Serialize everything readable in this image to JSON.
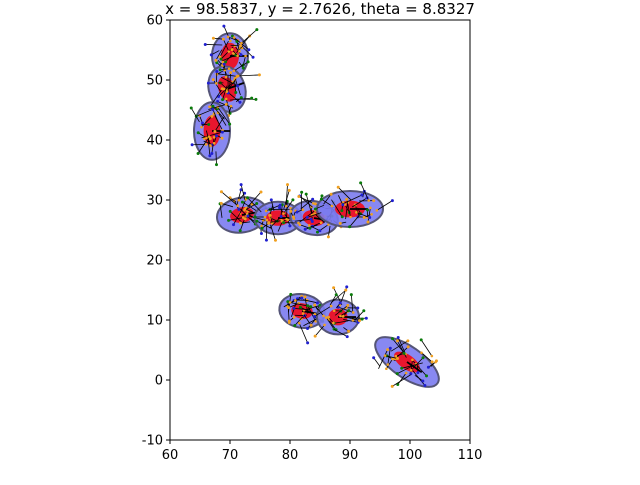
{
  "chart_data": {
    "type": "scatter",
    "title": "x = 98.5837, y = 2.7626, theta = 8.8327",
    "xlabel": "",
    "ylabel": "",
    "xlim": [
      60,
      110
    ],
    "ylim": [
      -10,
      60
    ],
    "xticks": [
      60,
      70,
      80,
      90,
      100,
      110
    ],
    "yticks": [
      -10,
      0,
      10,
      20,
      30,
      40,
      50,
      60
    ],
    "grid": false,
    "colors": {
      "outer_fill": "#7b7bf0",
      "outer_edge": "#555577",
      "inner_fill": "#e8162e",
      "arrow": "#000000",
      "particle_green": "#0a7a0a",
      "particle_orange": "#f0a020",
      "particle_blue": "#2020d0"
    },
    "ellipses": [
      {
        "cx": 70.0,
        "cy": 54.0,
        "rx": 3.0,
        "ry": 3.8,
        "angle": 0,
        "irx": 1.5,
        "iry": 2.2
      },
      {
        "cx": 69.5,
        "cy": 48.5,
        "rx": 3.0,
        "ry": 3.9,
        "angle": 20,
        "irx": 1.4,
        "iry": 2.2
      },
      {
        "cx": 67.0,
        "cy": 41.5,
        "rx": 3.0,
        "ry": 4.8,
        "angle": 0,
        "irx": 1.4,
        "iry": 2.6
      },
      {
        "cx": 72.0,
        "cy": 27.5,
        "rx": 4.2,
        "ry": 2.9,
        "angle": 10,
        "irx": 2.0,
        "iry": 1.3
      },
      {
        "cx": 78.0,
        "cy": 27.0,
        "rx": 3.9,
        "ry": 2.7,
        "angle": 0,
        "irx": 2.0,
        "iry": 1.3
      },
      {
        "cx": 84.0,
        "cy": 27.0,
        "rx": 4.0,
        "ry": 2.8,
        "angle": -10,
        "irx": 1.9,
        "iry": 1.3
      },
      {
        "cx": 90.0,
        "cy": 28.5,
        "rx": 5.5,
        "ry": 3.0,
        "angle": 0,
        "irx": 2.5,
        "iry": 1.4
      },
      {
        "cx": 82.0,
        "cy": 11.5,
        "rx": 3.8,
        "ry": 2.8,
        "angle": -10,
        "irx": 1.8,
        "iry": 1.3
      },
      {
        "cx": 88.0,
        "cy": 10.5,
        "rx": 3.5,
        "ry": 2.9,
        "angle": 0,
        "irx": 1.6,
        "iry": 1.4
      },
      {
        "cx": 99.5,
        "cy": 3.0,
        "rx": 6.2,
        "ry": 2.6,
        "angle": -35,
        "irx": 2.5,
        "iry": 1.2
      }
    ]
  }
}
